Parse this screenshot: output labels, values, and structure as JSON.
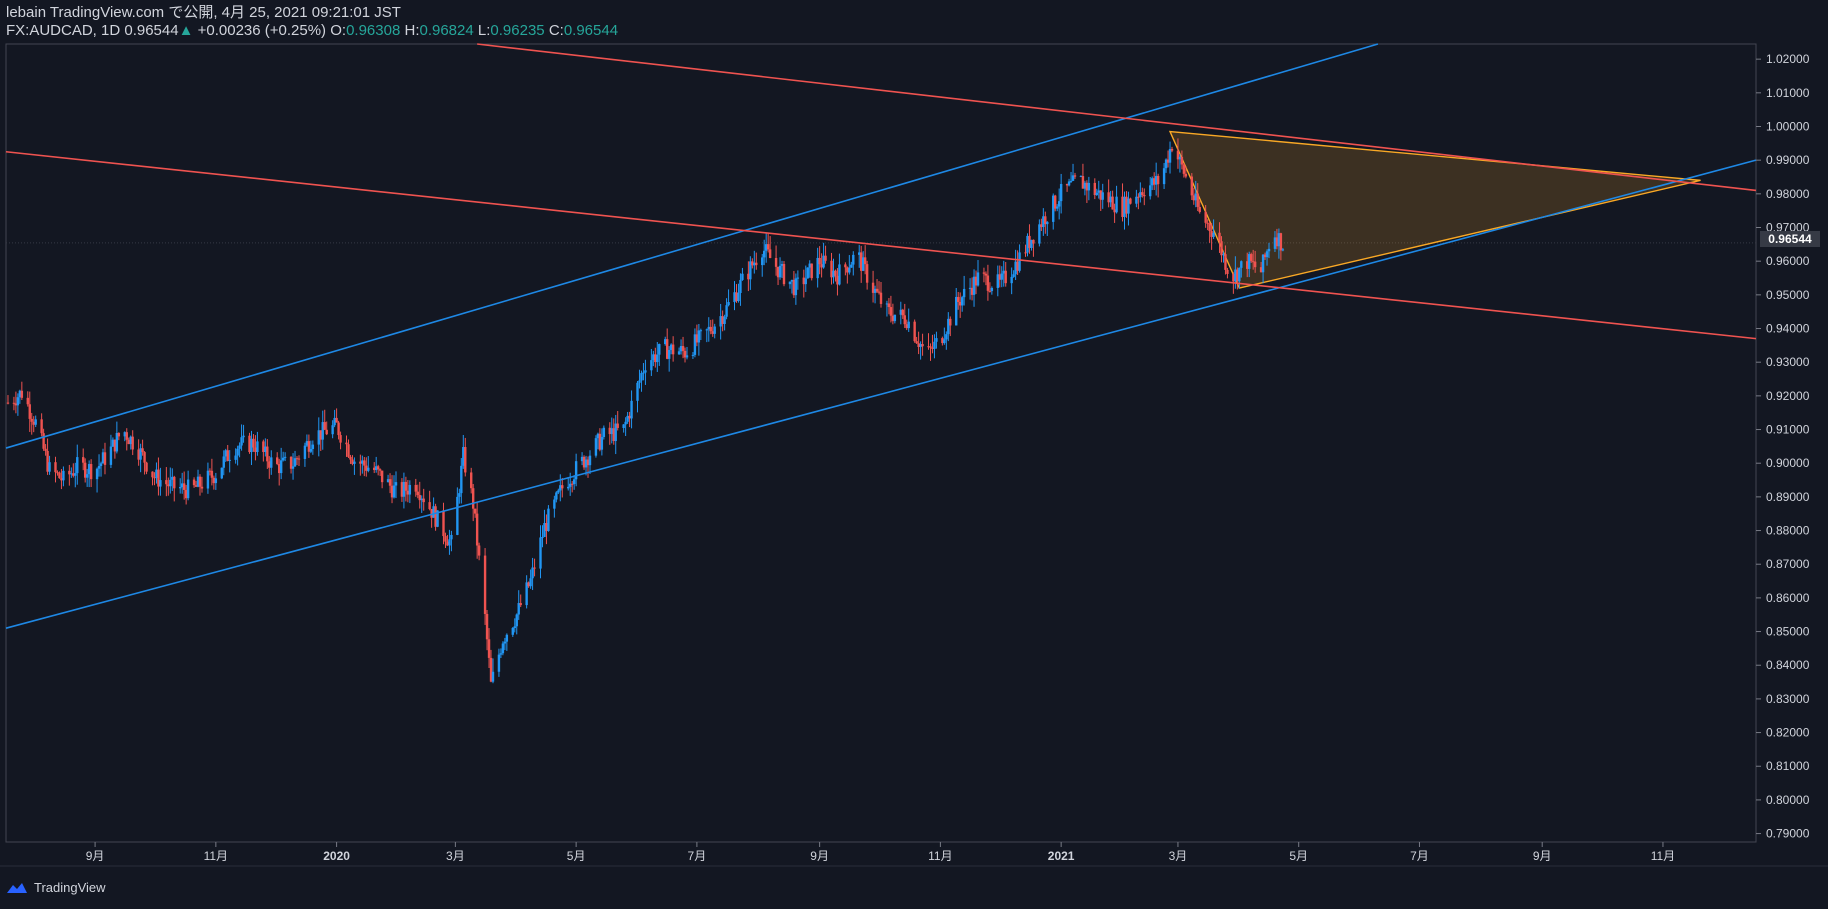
{
  "header": {
    "publisher_line": "lebain TradingView.com で公開, 4月 25, 2021 09:21:01 JST",
    "symbol": "FX:AUDCAD, 1D",
    "last": "0.96544",
    "change_arrow": "▲",
    "change": "+0.00236 (+0.25%)",
    "o_label": "O:",
    "o_value": "0.96308",
    "h_label": "H:",
    "h_value": "0.96824",
    "l_label": "L:",
    "l_value": "0.96235",
    "c_label": "C:",
    "c_value": "0.96544"
  },
  "footer": {
    "brand": "TradingView",
    "logo_icon": "tradingview-logo-icon"
  },
  "colors": {
    "background": "#131722",
    "up": "#2196f3",
    "down": "#ef5350",
    "channel_blue": "#1e88e5",
    "channel_red": "#ef5350",
    "triangle": "#f9a825"
  },
  "chart_data": {
    "type": "candlestick",
    "symbol": "FX:AUDCAD",
    "interval": "1D",
    "last_price": 0.96544,
    "ylim": [
      0.7875,
      1.0245
    ],
    "y_ticks": [
      "1.02000",
      "1.01000",
      "1.00000",
      "0.99000",
      "0.98000",
      "0.97000",
      "0.96000",
      "0.95000",
      "0.94000",
      "0.93000",
      "0.92000",
      "0.91000",
      "0.90000",
      "0.89000",
      "0.88000",
      "0.87000",
      "0.86000",
      "0.85000",
      "0.84000",
      "0.83000",
      "0.82000",
      "0.81000",
      "0.80000",
      "0.79000"
    ],
    "x_ticks": [
      "9月",
      "11月",
      "2020",
      "3月",
      "5月",
      "7月",
      "9月",
      "11月",
      "2021",
      "3月",
      "5月",
      "7月",
      "9月",
      "11月"
    ],
    "x_range": [
      "2019-07-18",
      "2021-12-18"
    ],
    "price_path": [
      [
        "2019-07-19",
        0.918
      ],
      [
        "2019-07-26",
        0.921
      ],
      [
        "2019-08-02",
        0.912
      ],
      [
        "2019-08-09",
        0.898
      ],
      [
        "2019-08-16",
        0.895
      ],
      [
        "2019-08-23",
        0.899
      ],
      [
        "2019-09-01",
        0.898
      ],
      [
        "2019-09-08",
        0.903
      ],
      [
        "2019-09-15",
        0.91
      ],
      [
        "2019-09-22",
        0.905
      ],
      [
        "2019-10-01",
        0.896
      ],
      [
        "2019-10-10",
        0.893
      ],
      [
        "2019-10-20",
        0.892
      ],
      [
        "2019-11-01",
        0.897
      ],
      [
        "2019-11-10",
        0.905
      ],
      [
        "2019-11-20",
        0.906
      ],
      [
        "2019-12-01",
        0.899
      ],
      [
        "2019-12-10",
        0.9
      ],
      [
        "2019-12-20",
        0.908
      ],
      [
        "2020-01-01",
        0.911
      ],
      [
        "2020-01-10",
        0.901
      ],
      [
        "2020-01-20",
        0.898
      ],
      [
        "2020-02-01",
        0.891
      ],
      [
        "2020-02-10",
        0.894
      ],
      [
        "2020-02-20",
        0.884
      ],
      [
        "2020-02-28",
        0.876
      ],
      [
        "2020-03-05",
        0.902
      ],
      [
        "2020-03-10",
        0.888
      ],
      [
        "2020-03-16",
        0.854
      ],
      [
        "2020-03-19",
        0.834
      ],
      [
        "2020-03-25",
        0.848
      ],
      [
        "2020-04-01",
        0.855
      ],
      [
        "2020-04-08",
        0.865
      ],
      [
        "2020-04-15",
        0.881
      ],
      [
        "2020-04-25",
        0.894
      ],
      [
        "2020-05-05",
        0.901
      ],
      [
        "2020-05-15",
        0.908
      ],
      [
        "2020-05-25",
        0.91
      ],
      [
        "2020-06-05",
        0.93
      ],
      [
        "2020-06-15",
        0.934
      ],
      [
        "2020-06-25",
        0.933
      ],
      [
        "2020-07-05",
        0.938
      ],
      [
        "2020-07-15",
        0.945
      ],
      [
        "2020-07-25",
        0.955
      ],
      [
        "2020-08-03",
        0.964
      ],
      [
        "2020-08-12",
        0.957
      ],
      [
        "2020-08-20",
        0.952
      ],
      [
        "2020-09-01",
        0.96
      ],
      [
        "2020-09-10",
        0.956
      ],
      [
        "2020-09-20",
        0.962
      ],
      [
        "2020-09-28",
        0.952
      ],
      [
        "2020-10-05",
        0.945
      ],
      [
        "2020-10-15",
        0.943
      ],
      [
        "2020-10-25",
        0.932
      ],
      [
        "2020-11-01",
        0.937
      ],
      [
        "2020-11-10",
        0.948
      ],
      [
        "2020-11-20",
        0.955
      ],
      [
        "2020-12-01",
        0.953
      ],
      [
        "2020-12-10",
        0.96
      ],
      [
        "2020-12-20",
        0.97
      ],
      [
        "2021-01-01",
        0.98
      ],
      [
        "2021-01-10",
        0.984
      ],
      [
        "2021-01-20",
        0.98
      ],
      [
        "2021-02-01",
        0.976
      ],
      [
        "2021-02-10",
        0.981
      ],
      [
        "2021-02-20",
        0.984
      ],
      [
        "2021-02-26",
        0.995
      ],
      [
        "2021-03-05",
        0.985
      ],
      [
        "2021-03-12",
        0.974
      ],
      [
        "2021-03-20",
        0.968
      ],
      [
        "2021-03-28",
        0.955
      ],
      [
        "2021-04-05",
        0.96
      ],
      [
        "2021-04-12",
        0.957
      ],
      [
        "2021-04-18",
        0.969
      ],
      [
        "2021-04-23",
        0.965
      ]
    ],
    "drawings": [
      {
        "kind": "line",
        "color": "blue",
        "points": [
          [
            "2019-07-18",
            0.9045
          ],
          [
            "2021-06-10",
            1.0245
          ]
        ]
      },
      {
        "kind": "line",
        "color": "blue",
        "points": [
          [
            "2019-07-18",
            0.851
          ],
          [
            "2021-12-18",
            0.99
          ]
        ]
      },
      {
        "kind": "line",
        "color": "red",
        "points": [
          [
            "2020-03-12",
            1.0245
          ],
          [
            "2021-12-18",
            0.981
          ]
        ]
      },
      {
        "kind": "line",
        "color": "red",
        "points": [
          [
            "2019-07-18",
            0.9925
          ],
          [
            "2021-12-18",
            0.937
          ]
        ]
      },
      {
        "kind": "triangle",
        "color": "orange",
        "points": [
          [
            "2021-02-25",
            0.9985
          ],
          [
            "2021-04-01",
            0.952
          ],
          [
            "2021-11-20",
            0.984
          ]
        ]
      }
    ]
  }
}
